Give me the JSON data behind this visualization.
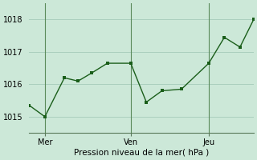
{
  "title": "",
  "xlabel": "Pression niveau de la mer( hPa )",
  "ylabel": "",
  "bg_color": "#cce8d8",
  "line_color": "#1a5e1a",
  "grid_color": "#aacfbe",
  "vline_color": "#5a8a5a",
  "xlim": [
    0,
    11.5
  ],
  "ylim": [
    1014.5,
    1018.5
  ],
  "yticks": [
    1015,
    1016,
    1017,
    1018
  ],
  "xtick_positions": [
    0.8,
    5.2,
    9.2
  ],
  "xtick_labels": [
    "Mer",
    "Ven",
    "Jeu"
  ],
  "vline_positions": [
    0.8,
    5.2,
    9.2
  ],
  "x": [
    0.0,
    0.8,
    1.8,
    2.5,
    3.2,
    4.0,
    5.2,
    6.0,
    6.8,
    7.8,
    9.2,
    10.0,
    10.8,
    11.5
  ],
  "y": [
    1015.35,
    1015.0,
    1016.2,
    1016.1,
    1016.35,
    1016.65,
    1016.65,
    1015.45,
    1015.8,
    1015.85,
    1016.65,
    1017.45,
    1017.15,
    1018.0
  ]
}
